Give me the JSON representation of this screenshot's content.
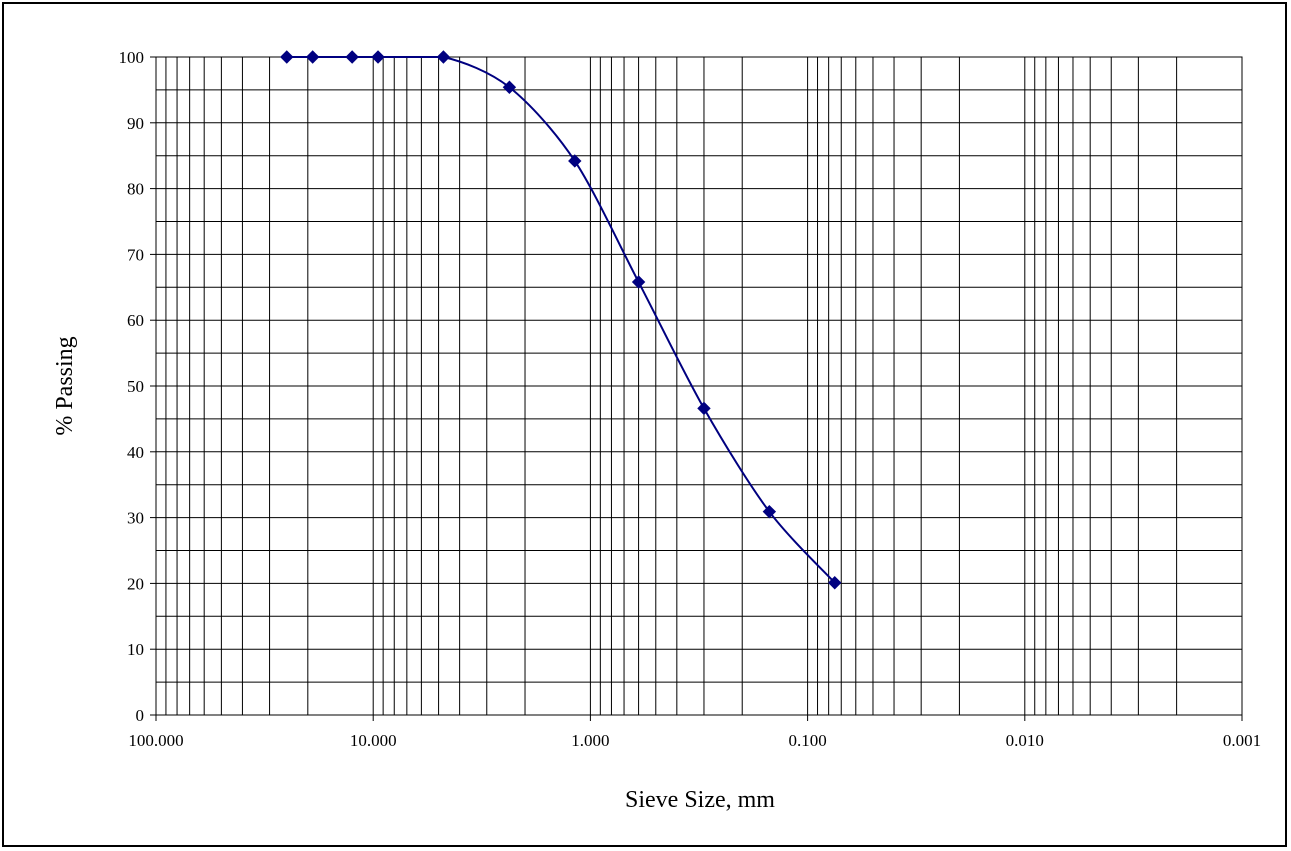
{
  "chart_data": {
    "type": "line",
    "title": "",
    "xlabel": "Sieve Size, mm",
    "ylabel": "% Passing",
    "x_scale": "log",
    "x_reversed": true,
    "xlim": [
      100,
      0.001
    ],
    "ylim": [
      0,
      100
    ],
    "grid": true,
    "legend": "none",
    "xticks": [
      {
        "value": 100,
        "label": "100.000"
      },
      {
        "value": 10,
        "label": "10.000"
      },
      {
        "value": 1,
        "label": "1.000"
      },
      {
        "value": 0.1,
        "label": "0.100"
      },
      {
        "value": 0.01,
        "label": "0.010"
      },
      {
        "value": 0.001,
        "label": "0.001"
      }
    ],
    "yticks": [
      0,
      10,
      20,
      30,
      40,
      50,
      60,
      70,
      80,
      90,
      100
    ],
    "series": [
      {
        "color": "#000080",
        "marker": "diamond",
        "smooth": true,
        "points": [
          {
            "x": 25.0,
            "y": 100
          },
          {
            "x": 19.0,
            "y": 100
          },
          {
            "x": 12.5,
            "y": 100
          },
          {
            "x": 9.5,
            "y": 100
          },
          {
            "x": 4.75,
            "y": 100
          },
          {
            "x": 2.36,
            "y": 95.4
          },
          {
            "x": 1.18,
            "y": 84.2
          },
          {
            "x": 0.6,
            "y": 65.8
          },
          {
            "x": 0.3,
            "y": 46.6
          },
          {
            "x": 0.15,
            "y": 30.9
          },
          {
            "x": 0.075,
            "y": 20.1
          }
        ]
      }
    ]
  }
}
